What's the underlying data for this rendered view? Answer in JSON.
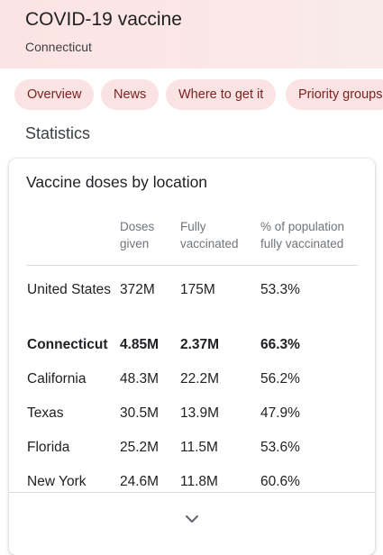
{
  "header": {
    "title": "COVID-19 vaccine",
    "subtitle": "Connecticut"
  },
  "chips": [
    {
      "label": "Overview"
    },
    {
      "label": "News"
    },
    {
      "label": "Where to get it"
    },
    {
      "label": "Priority groups"
    }
  ],
  "section_title": "Statistics",
  "card": {
    "title": "Vaccine doses by location",
    "columns": [
      {
        "line1": "",
        "line2": ""
      },
      {
        "line1": "Doses",
        "line2": "given"
      },
      {
        "line1": "Fully",
        "line2": "vaccinated"
      },
      {
        "line1": "% of population",
        "line2": "fully vaccinated"
      }
    ],
    "rows": [
      {
        "location": "United States",
        "doses": "372M",
        "fully": "175M",
        "pct": "53.3%",
        "highlight": false
      },
      {
        "location": "Connecticut",
        "doses": "4.85M",
        "fully": "2.37M",
        "pct": "66.3%",
        "highlight": true
      },
      {
        "location": "California",
        "doses": "48.3M",
        "fully": "22.2M",
        "pct": "56.2%",
        "highlight": false
      },
      {
        "location": "Texas",
        "doses": "30.5M",
        "fully": "13.9M",
        "pct": "47.9%",
        "highlight": false
      },
      {
        "location": "Florida",
        "doses": "25.2M",
        "fully": "11.5M",
        "pct": "53.6%",
        "highlight": false
      },
      {
        "location": "New York",
        "doses": "24.6M",
        "fully": "11.8M",
        "pct": "60.6%",
        "highlight": false
      }
    ],
    "expand_icon": "chevron-down-icon"
  }
}
